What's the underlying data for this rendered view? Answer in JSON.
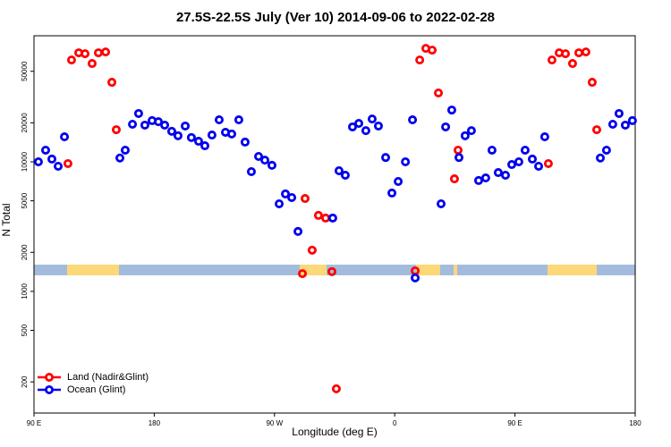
{
  "chart_data": {
    "type": "scatter",
    "title": "27.5S-22.5S July (Ver 10)   2014-09-06 to 2022-02-28",
    "xlabel": "Longitude (deg E)",
    "ylabel": "N Total",
    "xlim": [
      90,
      540
    ],
    "xticks": [
      {
        "value": 90,
        "label": "90 E"
      },
      180,
      {
        "value": 270,
        "label": "90 W"
      },
      {
        "value": 360,
        "label": "0"
      },
      {
        "value": 450,
        "label": "90 E"
      },
      {
        "value": 540,
        "label": "180"
      }
    ],
    "ylim": [
      115,
      94000
    ],
    "yscale": "log",
    "yticks": [
      200,
      500,
      1000,
      2000,
      5000,
      10000,
      20000,
      50000
    ],
    "legend": "bottom-left",
    "series": [
      {
        "name": "Land (Nadir&Glint)",
        "color": "#ff0000",
        "x": [
          115.4,
          118.1,
          123.5,
          128.2,
          133.5,
          138.2,
          143.6,
          148.3,
          151.6,
          290.9,
          292.9,
          298.2,
          302.9,
          308.3,
          313,
          316.3,
          375.3,
          378.7,
          383.3,
          388,
          392.7,
          404.7,
          407.4,
          475,
          477.7,
          483.1,
          487.8,
          493.1,
          497.8,
          503.1,
          507.8,
          511.2
        ],
        "values": [
          9690,
          61100,
          69400,
          68300,
          57400,
          69400,
          70500,
          41100,
          17700,
          1370,
          5210,
          2080,
          3860,
          3680,
          1420,
          177,
          1440,
          61100,
          75100,
          72800,
          34000,
          7390,
          12300,
          9690,
          61100,
          69400,
          68300,
          57400,
          69400,
          70500,
          41100,
          17700
        ]
      },
      {
        "name": "Ocean (Glint)",
        "color": "#0000ee",
        "x": [
          93.3,
          98.7,
          103.4,
          108.1,
          112.8,
          154.3,
          158.3,
          163.7,
          168.3,
          173,
          178.4,
          183.1,
          187.8,
          193.1,
          197.8,
          203.2,
          207.8,
          213.2,
          217.9,
          223.2,
          228.6,
          233.3,
          238,
          243.3,
          248,
          252.7,
          258.1,
          262.8,
          268.1,
          273.5,
          278.2,
          282.9,
          287.6,
          313.6,
          318.3,
          323,
          328.4,
          333.1,
          338.4,
          343.1,
          347.8,
          353.2,
          357.9,
          362.6,
          368,
          373.3,
          375.3,
          394.7,
          398.1,
          402.7,
          408.1,
          412.7,
          417.4,
          422.8,
          428.1,
          432.8,
          437.5,
          442.9,
          447.6,
          452.9,
          457.6,
          463,
          467.7,
          472.3,
          513.9,
          518.5,
          523.2,
          527.9,
          532.6,
          537.9
        ],
        "values": [
          10000,
          12300,
          10500,
          9240,
          15600,
          10700,
          12300,
          19500,
          23600,
          19200,
          20800,
          20400,
          19200,
          17200,
          15900,
          18900,
          15400,
          14400,
          13300,
          16100,
          21100,
          16900,
          16400,
          21100,
          14200,
          8400,
          11000,
          10300,
          9400,
          4740,
          5650,
          5300,
          2900,
          3680,
          8530,
          7880,
          18600,
          19800,
          17400,
          21400,
          18900,
          10800,
          5740,
          7050,
          10000,
          21100,
          1270,
          4740,
          18600,
          25100,
          10800,
          15900,
          17400,
          7170,
          7510,
          12300,
          8260,
          7880,
          9530,
          10000,
          12300,
          10500,
          9240,
          15600,
          10700,
          12300,
          19500,
          23600,
          19200,
          20800
        ]
      }
    ]
  }
}
